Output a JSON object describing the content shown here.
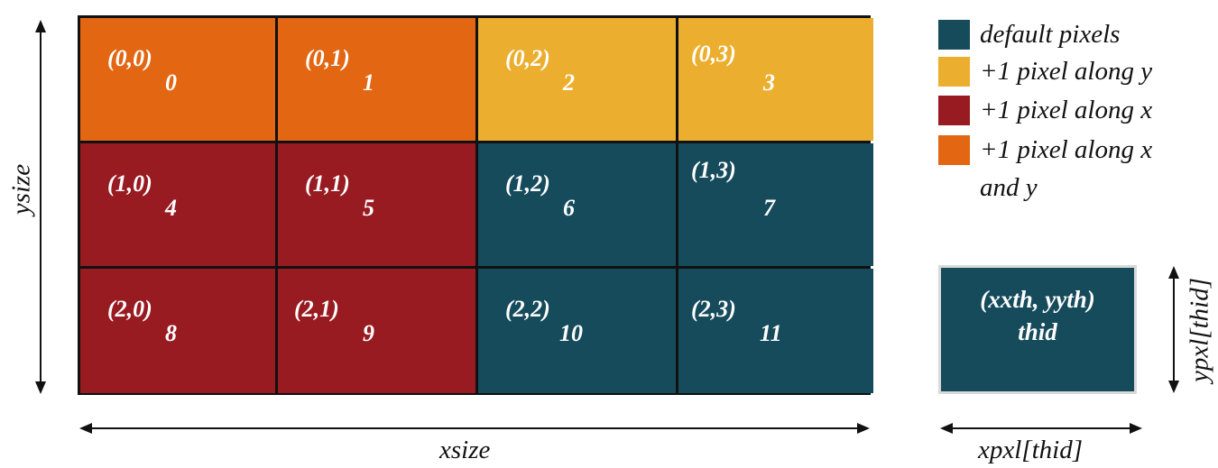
{
  "grid": {
    "rows": [
      [
        {
          "coord": "(0,0)",
          "tid": "0",
          "color": "#e36612"
        },
        {
          "coord": "(0,1)",
          "tid": "1",
          "color": "#e36612"
        },
        {
          "coord": "(0,2)",
          "tid": "2",
          "color": "#ecae2e"
        },
        {
          "coord": "(0,3)",
          "tid": "3",
          "color": "#ecae2e"
        }
      ],
      [
        {
          "coord": "(1,0)",
          "tid": "4",
          "color": "#981b21"
        },
        {
          "coord": "(1,1)",
          "tid": "5",
          "color": "#981b21"
        },
        {
          "coord": "(1,2)",
          "tid": "6",
          "color": "#164b5c"
        },
        {
          "coord": "(1,3)",
          "tid": "7",
          "color": "#164b5c"
        }
      ],
      [
        {
          "coord": "(2,0)",
          "tid": "8",
          "color": "#981b21"
        },
        {
          "coord": "(2,1)",
          "tid": "9",
          "color": "#981b21"
        },
        {
          "coord": "(2,2)",
          "tid": "10",
          "color": "#164b5c"
        },
        {
          "coord": "(2,3)",
          "tid": "11",
          "color": "#164b5c"
        }
      ]
    ]
  },
  "axes": {
    "x_label": "xsize",
    "y_label": "ysize"
  },
  "legend": [
    {
      "label": "default pixels",
      "color": "#164b5c"
    },
    {
      "label": "+1 pixel along y",
      "color": "#ecae2e"
    },
    {
      "label": "+1 pixel along x",
      "color": "#981b21"
    },
    {
      "label": "+1 pixel along x and y",
      "color": "#e36612"
    }
  ],
  "thread_box": {
    "line1": "(xxth, yyth)",
    "line2": "thid",
    "width_label": "xpxl[thid]",
    "height_label": "ypxl[thid]",
    "color": "#164b5c"
  }
}
